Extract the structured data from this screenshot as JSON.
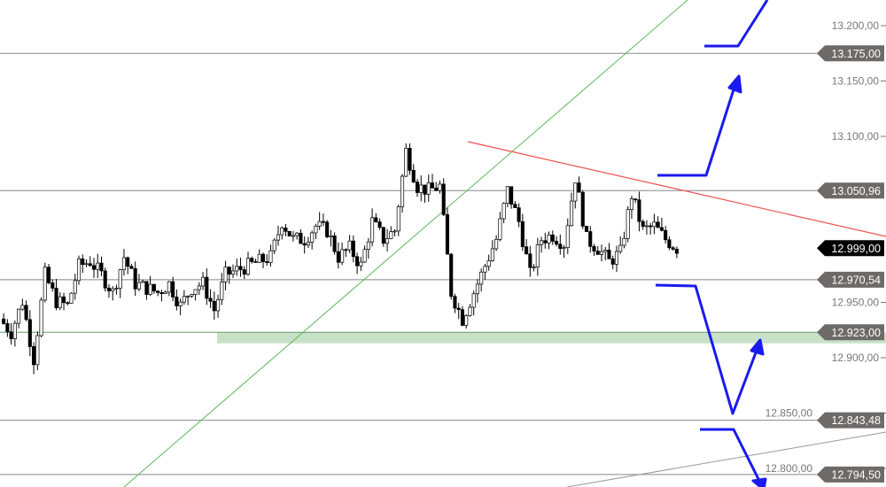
{
  "chart_data": {
    "type": "candlestick",
    "ylim": [
      12790,
      13215
    ],
    "y_ticks": [
      "13.200,00",
      "13.150,00",
      "13.100,00",
      "12.950,00",
      "12.900,00",
      "12.850,00",
      "12.800,00"
    ],
    "y_tick_values": [
      13200,
      13150,
      13100,
      12950,
      12900,
      12850,
      12800
    ],
    "closes": [
      12935,
      12923,
      12951,
      12899,
      12975,
      12951,
      12947,
      12983,
      12987,
      12975,
      12959,
      12991,
      12967,
      12963,
      12959,
      12967,
      12947,
      12963,
      12967,
      12943,
      12975,
      12979,
      12983,
      12987,
      12991,
      13023,
      13007,
      13007,
      13019,
      13015,
      12991,
      12999,
      12983,
      13023,
      13007,
      13015,
      13087,
      13055,
      13051,
      13055,
      12959,
      12935,
      12959,
      12983,
      13007,
      13051,
      13023,
      12975,
      13007,
      13011,
      13003,
      13063,
      13007,
      12999,
      12987,
      12995,
      13047,
      13015,
      13019,
      13007,
      12999
    ],
    "levels": [
      {
        "value": 13175.0,
        "label": "13.175,00",
        "color": "#888888"
      },
      {
        "value": 13050.96,
        "label": "13.050,96",
        "color": "#888888"
      },
      {
        "value": 12970.54,
        "label": "12.970,54",
        "color": "#888888"
      },
      {
        "value": 12923.0,
        "label": "12.923,00",
        "color": "#888888"
      },
      {
        "value": 12843.48,
        "label": "12.843,48",
        "color": "#888888"
      },
      {
        "value": 12794.5,
        "label": "12.794,50",
        "color": "#888888"
      }
    ],
    "last_price": {
      "value": 12999.0,
      "label": "12.999,00",
      "color": "#000000"
    },
    "support_zone": {
      "from": 12913,
      "to": 12923,
      "color": "#c8e2c8"
    },
    "colors": {
      "resistance_trend": "#f05050",
      "support_trend": "#5cb85c",
      "lower_trend": "#999999",
      "arrows": "#1a1aee",
      "tag": "#6e6a68"
    }
  }
}
